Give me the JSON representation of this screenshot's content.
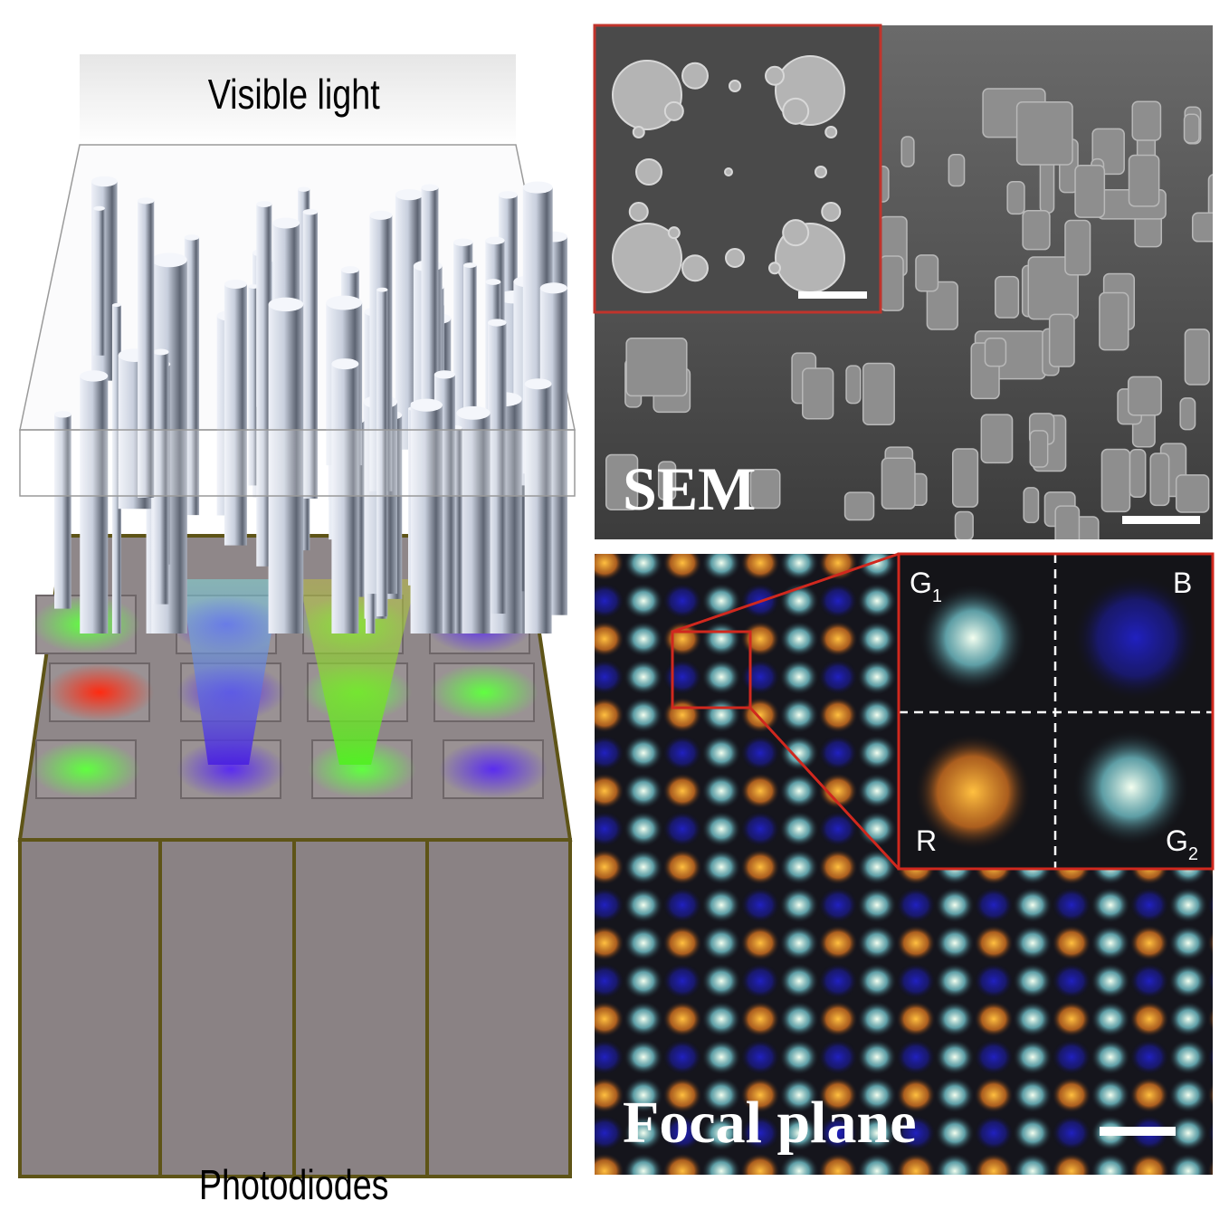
{
  "schematic": {
    "top_label": "Visible light",
    "bottom_label": "Photodiodes"
  },
  "sem_panel": {
    "label": "SEM"
  },
  "focal_panel": {
    "label": "Focal plane",
    "quadrants": [
      {
        "letter": "G",
        "sub": "1"
      },
      {
        "letter": "B"
      },
      {
        "letter": "R"
      },
      {
        "letter": "G",
        "sub": "2"
      }
    ]
  }
}
